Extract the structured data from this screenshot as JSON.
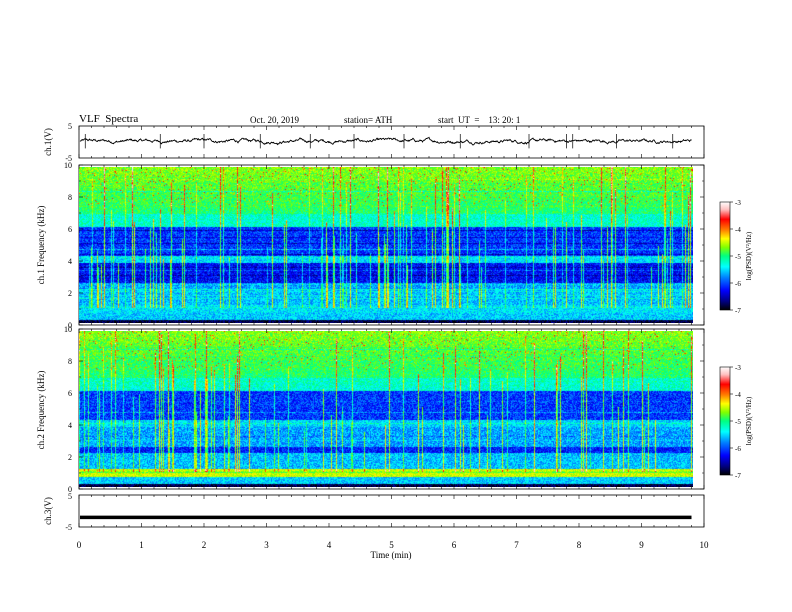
{
  "header": {
    "title": "VLF  Spectra",
    "date": "Oct. 20, 2019",
    "station": "station= ATH",
    "start": "start  UT  =    13: 20: 1"
  },
  "chart_data": [
    {
      "type": "line",
      "ylabel": "ch.1(V)",
      "ylim": [
        -5,
        5
      ],
      "yticks": [
        "5",
        "-5"
      ],
      "x_range_min": [
        0,
        9.8
      ],
      "baseline_v": 0.3,
      "bursts_min": [
        0.1,
        1.3,
        2.0,
        2.9,
        3.7,
        4.4,
        5.2,
        6.1,
        7.2,
        7.8,
        7.9,
        8.6,
        9.5
      ]
    },
    {
      "type": "heatmap",
      "name": "ch.1 spectrogram",
      "ylabel": "ch.1\nFrequency  (kHz)",
      "ylim": [
        0,
        10
      ],
      "yticks": [
        "0",
        "2",
        "4",
        "6",
        "8",
        "10"
      ],
      "colorbar": {
        "label": "log(PSD)(V²/Hz)",
        "range": [
          -7,
          -3
        ],
        "ticks": [
          "-3",
          "-4",
          "-5",
          "-6",
          "-7"
        ]
      }
    },
    {
      "type": "heatmap",
      "name": "ch.2 spectrogram",
      "ylabel": "ch.2\nFrequency  (kHz)",
      "ylim": [
        0,
        10
      ],
      "yticks": [
        "0",
        "2",
        "4",
        "6",
        "8",
        "10"
      ],
      "colorbar": {
        "label": "log(PSD)(V²/Hz)",
        "range": [
          -7,
          -3
        ],
        "ticks": [
          "-3",
          "-4",
          "-5",
          "-6",
          "-7"
        ]
      }
    },
    {
      "type": "line",
      "ylabel": "ch.3(V)",
      "ylim": [
        -5,
        5
      ],
      "yticks": [
        "5",
        "-5"
      ],
      "x_range_min": [
        0,
        9.8
      ],
      "constant_v": -2
    }
  ],
  "xaxis": {
    "label": "Time  (min)",
    "range": [
      0,
      10
    ],
    "ticks": [
      "0",
      "1",
      "2",
      "3",
      "4",
      "5",
      "6",
      "7",
      "8",
      "9",
      "10"
    ]
  },
  "colors": {
    "cmap": [
      "#000000",
      "#000080",
      "#0000ff",
      "#0080ff",
      "#00ffff",
      "#00ff80",
      "#80ff00",
      "#ffff00",
      "#ff8000",
      "#ff0000",
      "#ffc0c0",
      "#ffffff"
    ]
  }
}
